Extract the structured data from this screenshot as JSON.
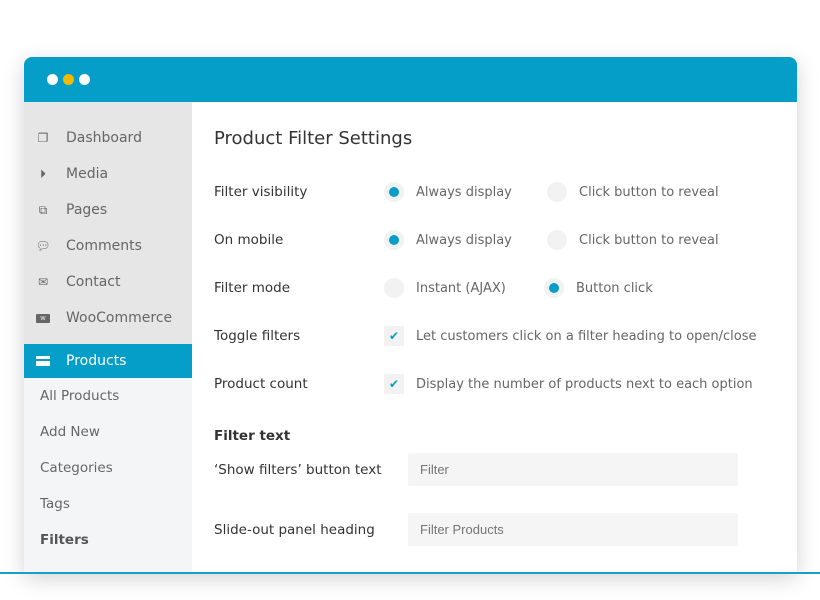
{
  "window": {
    "controls": [
      "close",
      "minimize",
      "maximize"
    ],
    "accent": "#049ec8",
    "minimize_color": "#f5b800"
  },
  "sidebar": {
    "items": [
      {
        "label": "Dashboard",
        "icon": "dashboard-icon"
      },
      {
        "label": "Media",
        "icon": "media-play-icon"
      },
      {
        "label": "Pages",
        "icon": "pages-icon"
      },
      {
        "label": "Comments",
        "icon": "comments-icon"
      },
      {
        "label": "Contact",
        "icon": "envelope-icon"
      },
      {
        "label": "WooCommerce",
        "icon": "woo-icon"
      }
    ],
    "active": {
      "label": "Products",
      "icon": "archive-icon"
    },
    "subitems": [
      "All Products",
      "Add New",
      "Categories",
      "Tags",
      "Filters"
    ]
  },
  "main": {
    "title": "Product Filter Settings",
    "settings": [
      {
        "label": "Filter visibility",
        "type": "radio",
        "options": [
          {
            "label": "Always display",
            "selected": true
          },
          {
            "label": "Click button to reveal",
            "selected": false
          }
        ]
      },
      {
        "label": "On mobile",
        "type": "radio",
        "options": [
          {
            "label": "Always display",
            "selected": true
          },
          {
            "label": "Click button to reveal",
            "selected": false
          }
        ]
      },
      {
        "label": "Filter mode",
        "type": "radio",
        "options": [
          {
            "label": "Instant (AJAX)",
            "selected": false
          },
          {
            "label": "Button click",
            "selected": true
          }
        ]
      },
      {
        "label": "Toggle filters",
        "type": "checkbox",
        "checked": true,
        "text": "Let customers click on a filter heading to open/close"
      },
      {
        "label": "Product count",
        "type": "checkbox",
        "checked": true,
        "text": "Display the number of products next to each option"
      }
    ],
    "filter_text": {
      "heading": "Filter text",
      "fields": [
        {
          "label": "‘Show filters’ button text",
          "placeholder": "Filter"
        },
        {
          "label": "Slide-out panel heading",
          "placeholder": "Filter Products"
        }
      ]
    }
  }
}
